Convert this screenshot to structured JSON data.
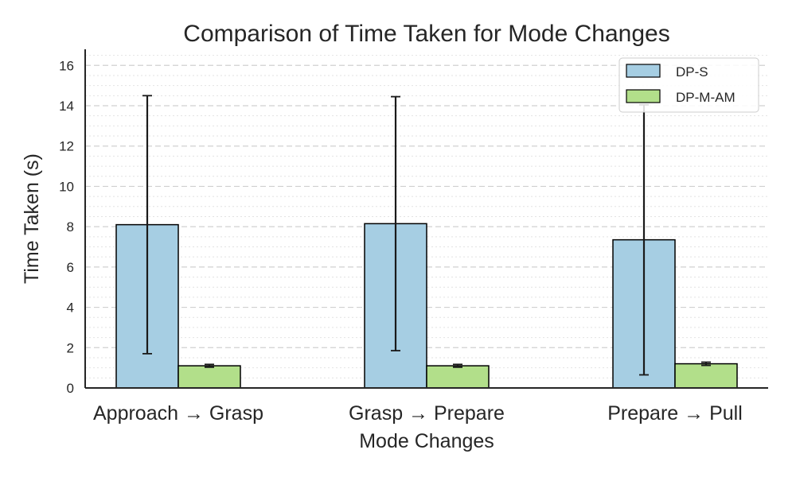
{
  "chart_data": {
    "type": "bar",
    "title": "Comparison of Time Taken for Mode Changes",
    "xlabel": "Mode Changes",
    "ylabel": "Time Taken (s)",
    "categories": [
      "Approach → Grasp",
      "Grasp → Prepare",
      "Prepare → Pull"
    ],
    "series": [
      {
        "name": "DP-S",
        "color": "#a6cee3",
        "values": [
          8.1,
          8.15,
          7.35
        ],
        "error": [
          6.4,
          6.3,
          6.7
        ]
      },
      {
        "name": "DP-M-AM",
        "color": "#b2df8a",
        "values": [
          1.1,
          1.1,
          1.2
        ],
        "error": [
          0.07,
          0.07,
          0.08
        ]
      }
    ],
    "ylim": [
      0,
      16.8
    ],
    "yticks": [
      "0",
      "2",
      "4",
      "6",
      "8",
      "10",
      "12",
      "14",
      "16"
    ],
    "grid": true,
    "legend_position": "top-right"
  }
}
